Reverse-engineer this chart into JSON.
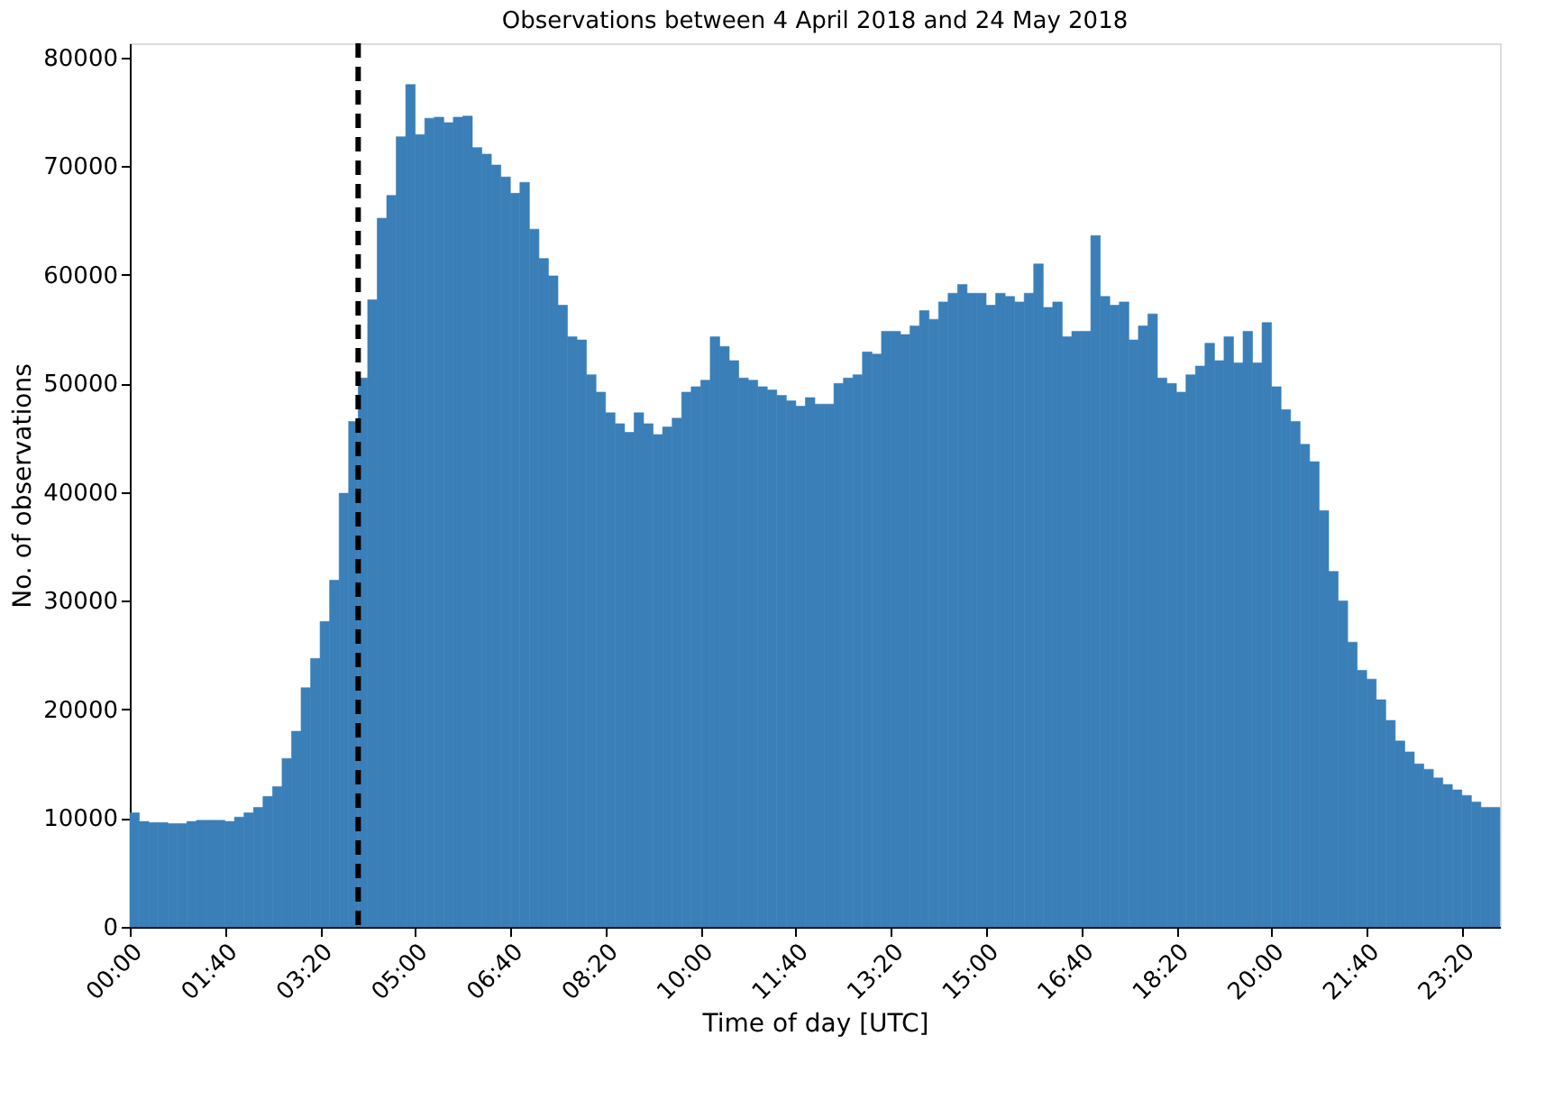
{
  "chart_data": {
    "type": "histogram",
    "title": "Observations between 4 April 2018 and 24 May 2018",
    "xlabel": "Time of day [UTC]",
    "ylabel": "No. of observations",
    "color": "#3a7fb8",
    "bins": [
      0,
      0.1667,
      0.3333,
      0.5,
      0.6667,
      0.8333,
      1,
      1.1667,
      1.3333,
      1.5,
      1.6667,
      1.8333,
      2,
      2.1667,
      2.3333,
      2.5,
      2.6667,
      2.8333,
      3,
      3.1667,
      3.3333,
      3.5,
      3.6667,
      3.8333,
      4,
      4.1667,
      4.3333,
      4.5,
      4.6667,
      4.8333,
      5,
      5.1667,
      5.3333,
      5.5,
      5.6667,
      5.8333,
      6,
      6.1667,
      6.3333,
      6.5,
      6.6667,
      6.8333,
      7,
      7.1667,
      7.3333,
      7.5,
      7.6667,
      7.8333,
      8,
      8.1667,
      8.3333,
      8.5,
      8.6667,
      8.8333,
      9,
      9.1667,
      9.3333,
      9.5,
      9.6667,
      9.8333,
      10,
      10.1667,
      10.3333,
      10.5,
      10.6667,
      10.8333,
      11,
      11.1667,
      11.3333,
      11.5,
      11.6667,
      11.8333,
      12,
      12.1667,
      12.3333,
      12.5,
      12.6667,
      12.8333,
      13,
      13.1667,
      13.3333,
      13.5,
      13.6667,
      13.8333,
      14,
      14.1667,
      14.3333,
      14.5,
      14.6667,
      14.8333,
      15,
      15.1667,
      15.3333,
      15.5,
      15.6667,
      15.8333,
      16,
      16.1667,
      16.3333,
      16.5,
      16.6667,
      16.8333,
      17,
      17.1667,
      17.3333,
      17.5,
      17.6667,
      17.8333,
      18,
      18.1667,
      18.3333,
      18.5,
      18.6667,
      18.8333,
      19,
      19.1667,
      19.3333,
      19.5,
      19.6667,
      19.8333,
      20,
      20.1667,
      20.3333,
      20.5,
      20.6667,
      20.8333,
      21,
      21.1667,
      21.3333,
      21.5,
      21.6667,
      21.8333,
      22,
      22.1667,
      22.3333,
      22.5,
      22.6667,
      22.8333,
      23,
      23.1667,
      23.3333,
      23.5,
      23.6667,
      23.8333,
      24
    ],
    "values": [
      10500,
      9700,
      9600,
      9600,
      9500,
      9500,
      9700,
      9800,
      9800,
      9800,
      9700,
      10100,
      10500,
      11000,
      12000,
      12900,
      15500,
      18000,
      22000,
      24700,
      28100,
      31900,
      39900,
      46500,
      50500,
      57700,
      65200,
      67300,
      72700,
      77500,
      72900,
      74400,
      74500,
      74000,
      74500,
      74600,
      71700,
      71100,
      70100,
      69000,
      67500,
      68500,
      64200,
      61500,
      59900,
      57200,
      54300,
      54000,
      50800,
      49200,
      47300,
      46300,
      45500,
      47300,
      46300,
      45300,
      46000,
      46800,
      49200,
      49700,
      50300,
      54300,
      53400,
      52100,
      50500,
      50300,
      49700,
      49400,
      48900,
      48400,
      47900,
      48700,
      48100,
      48100,
      50000,
      50500,
      50800,
      52900,
      52700,
      54800,
      54800,
      54500,
      55300,
      56700,
      55900,
      57500,
      58300,
      59100,
      58300,
      58300,
      57200,
      58300,
      58000,
      57500,
      58300,
      61000,
      57000,
      57500,
      54300,
      54800,
      54800,
      63600,
      58000,
      57200,
      57500,
      54000,
      55300,
      56400,
      50500,
      50000,
      49200,
      50800,
      51600,
      53700,
      52100,
      54300,
      51900,
      54800,
      51900,
      55600,
      49700,
      47600,
      46500,
      44400,
      42800,
      38300,
      32700,
      30000,
      26200,
      23600,
      22800,
      20900,
      19000,
      17100,
      16100,
      15000,
      14500,
      13700,
      13100,
      12600,
      12100,
      11500,
      11000,
      11000
    ],
    "xlim": [
      0,
      24
    ],
    "xticks": [
      {
        "value": 0,
        "label": "00:00"
      },
      {
        "value": 1.6667,
        "label": "01:40"
      },
      {
        "value": 3.3333,
        "label": "03:20"
      },
      {
        "value": 5,
        "label": "05:00"
      },
      {
        "value": 6.6667,
        "label": "06:40"
      },
      {
        "value": 8.3333,
        "label": "08:20"
      },
      {
        "value": 10,
        "label": "10:00"
      },
      {
        "value": 11.6667,
        "label": "11:40"
      },
      {
        "value": 13.3333,
        "label": "13:20"
      },
      {
        "value": 15,
        "label": "15:00"
      },
      {
        "value": 16.6667,
        "label": "16:40"
      },
      {
        "value": 18.3333,
        "label": "18:20"
      },
      {
        "value": 20,
        "label": "20:00"
      },
      {
        "value": 21.6667,
        "label": "21:40"
      },
      {
        "value": 23.3333,
        "label": "23:20"
      }
    ],
    "ylim": [
      0,
      81300
    ],
    "yticks": [
      0,
      10000,
      20000,
      30000,
      40000,
      50000,
      60000,
      70000,
      80000
    ],
    "grid": false,
    "ref_lines": [
      {
        "axis": "x",
        "value": 4,
        "color": "#000000",
        "line_style": "dashed"
      }
    ]
  }
}
